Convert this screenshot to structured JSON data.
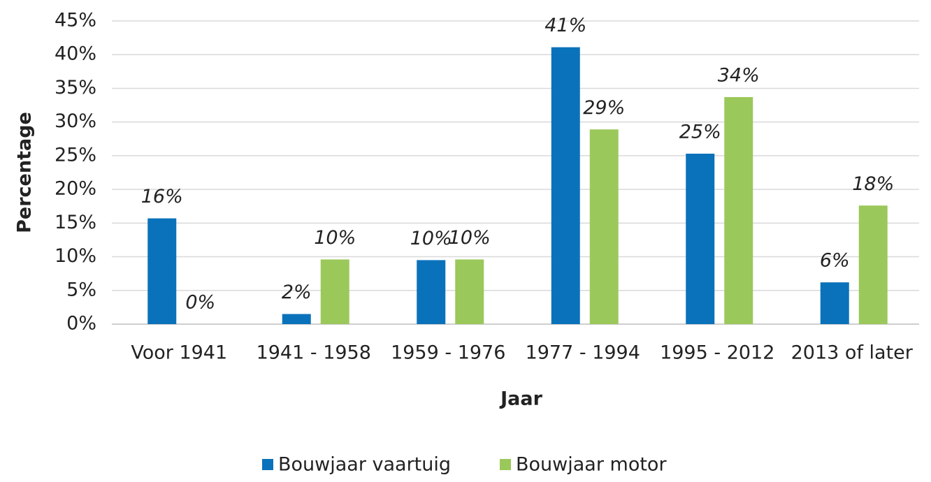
{
  "chart_data": {
    "type": "bar",
    "x_label": "Jaar",
    "y_label": "Percentage",
    "categories": [
      "Voor 1941",
      "1941 - 1958",
      "1959 - 1976",
      "1977 - 1994",
      "1995 - 2012",
      "2013 of later"
    ],
    "series": [
      {
        "name": "Bouwjaar vaartuig",
        "color": "#0a72ba",
        "values": [
          15.7,
          1.5,
          9.5,
          41.1,
          25.3,
          6.2
        ],
        "value_labels": [
          "16%",
          "2%",
          "10%",
          "41%",
          "25%",
          "6%"
        ]
      },
      {
        "name": "Bouwjaar motor",
        "color": "#9bc85a",
        "values": [
          0,
          9.6,
          9.6,
          28.9,
          33.7,
          17.6
        ],
        "value_labels": [
          "0%",
          "10%",
          "10%",
          "29%",
          "34%",
          "18%"
        ]
      }
    ],
    "ylim": [
      0,
      45
    ],
    "yticks": [
      {
        "value": 0,
        "label": "0%"
      },
      {
        "value": 5,
        "label": "5%"
      },
      {
        "value": 10,
        "label": "10%"
      },
      {
        "value": 15,
        "label": "15%"
      },
      {
        "value": 20,
        "label": "20%"
      },
      {
        "value": 25,
        "label": "25%"
      },
      {
        "value": 30,
        "label": "30%"
      },
      {
        "value": 35,
        "label": "35%"
      },
      {
        "value": 40,
        "label": "40%"
      },
      {
        "value": 45,
        "label": "45%"
      }
    ],
    "grid": true,
    "legend": "bottom"
  }
}
